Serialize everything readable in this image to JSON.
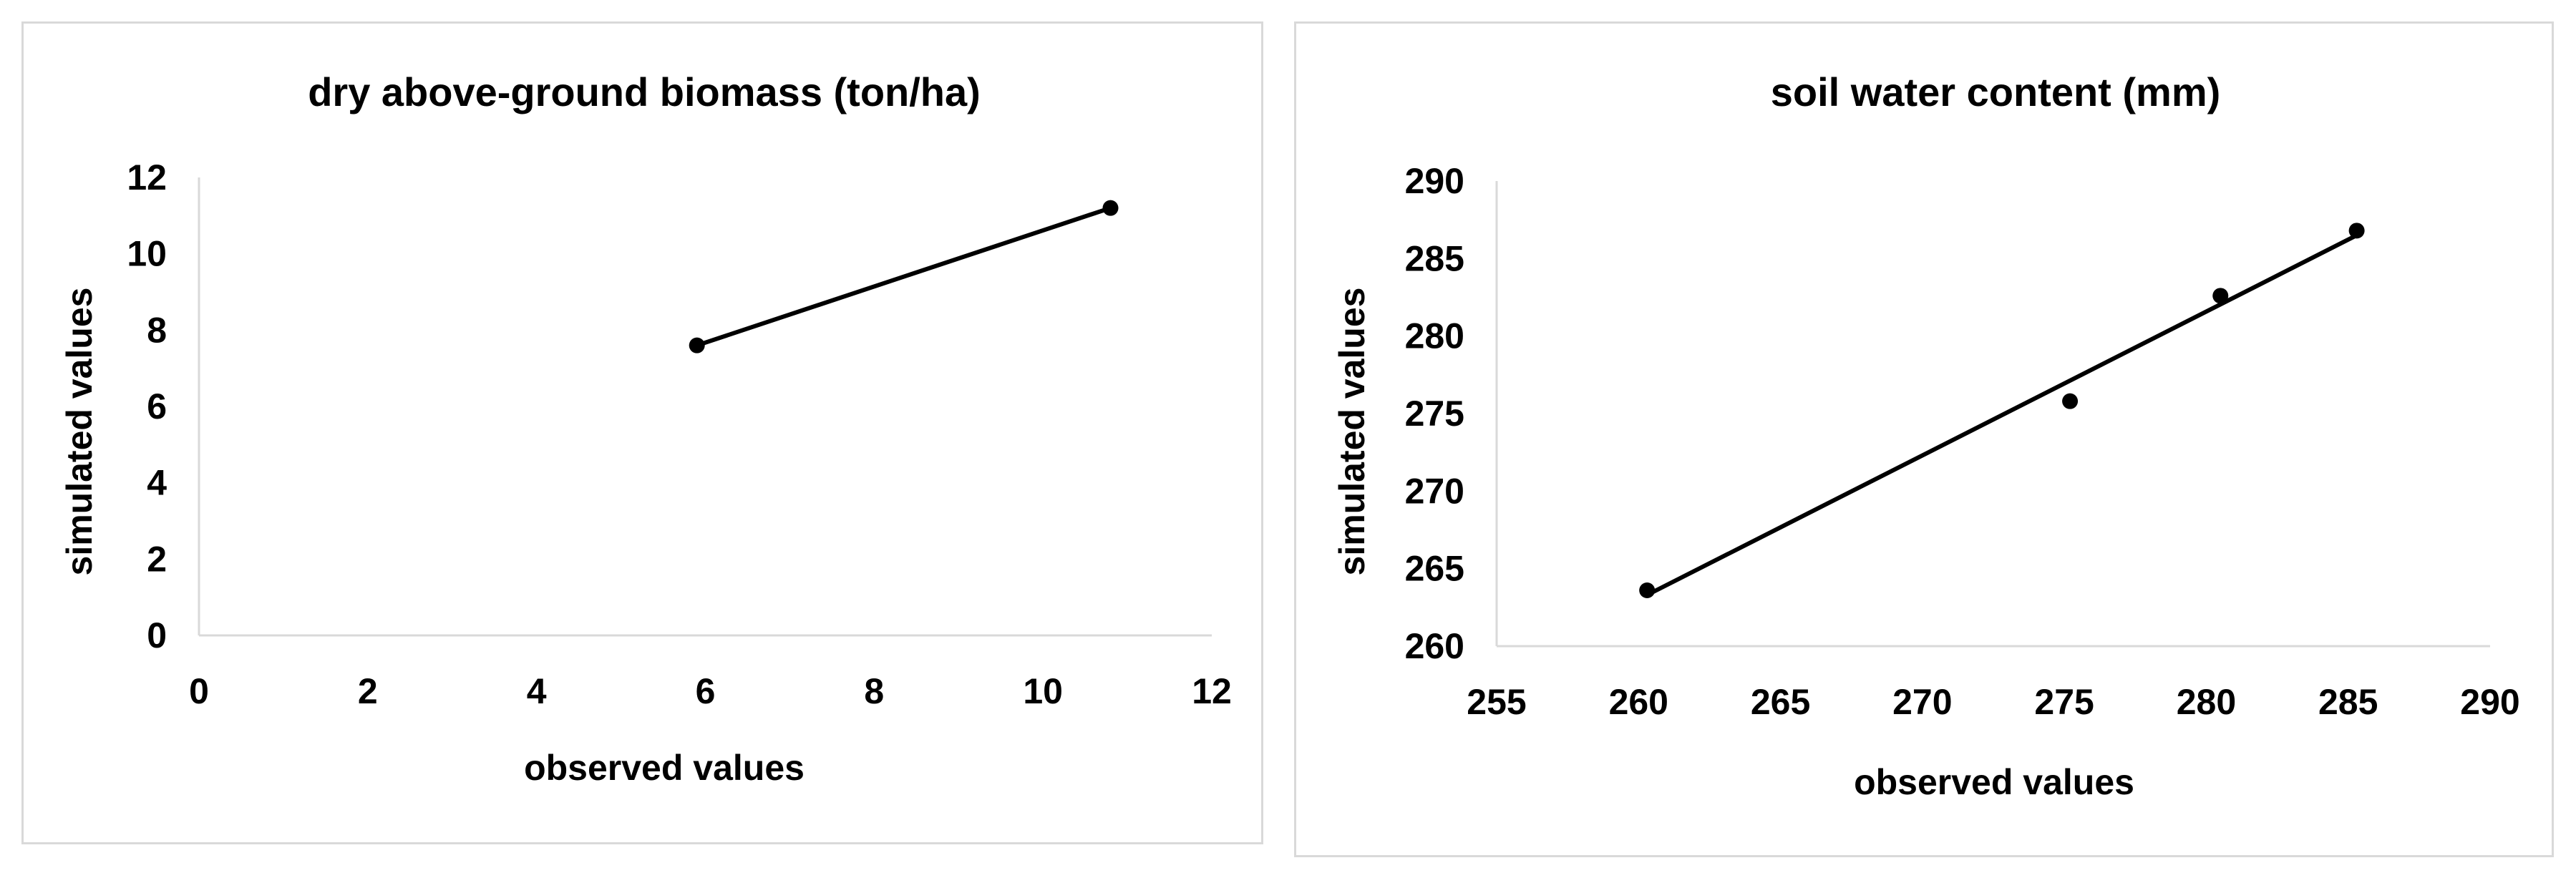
{
  "chart_data": [
    {
      "type": "scatter",
      "title": "dry above-ground biomass (ton/ha)",
      "xlabel": "observed values",
      "ylabel": "simulated values",
      "xlim": [
        0,
        12
      ],
      "ylim": [
        0,
        12
      ],
      "xticks": [
        0,
        2,
        4,
        6,
        8,
        10,
        12
      ],
      "yticks": [
        0,
        2,
        4,
        6,
        8,
        10,
        12
      ],
      "grid": false,
      "points": [
        {
          "x": 5.9,
          "y": 7.6
        },
        {
          "x": 10.8,
          "y": 11.2
        }
      ],
      "trendline": {
        "x": [
          5.9,
          10.8
        ],
        "y": [
          7.6,
          11.2
        ]
      }
    },
    {
      "type": "scatter",
      "title": "soil water content (mm)",
      "xlabel": "observed values",
      "ylabel": "simulated values",
      "xlim": [
        255,
        290
      ],
      "ylim": [
        260,
        290
      ],
      "xticks": [
        255,
        260,
        265,
        270,
        275,
        280,
        285,
        290
      ],
      "yticks": [
        260,
        265,
        270,
        275,
        280,
        285,
        290
      ],
      "grid": false,
      "points": [
        {
          "x": 260.3,
          "y": 263.6
        },
        {
          "x": 275.2,
          "y": 275.8
        },
        {
          "x": 280.5,
          "y": 282.6
        },
        {
          "x": 285.3,
          "y": 286.8
        }
      ],
      "trendline": {
        "x": [
          260.3,
          285.3
        ],
        "y": [
          263.3,
          286.5
        ]
      }
    }
  ]
}
